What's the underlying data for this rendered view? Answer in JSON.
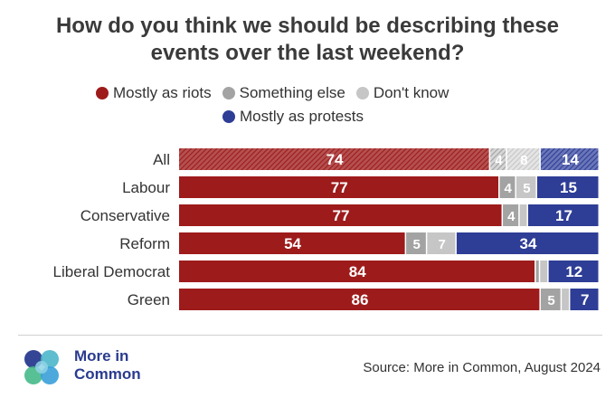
{
  "title_line1": "How do you think we should be describing these",
  "title_line2": "events over the last weekend?",
  "legend": [
    {
      "label": "Mostly as riots",
      "color": "#9e1b1b"
    },
    {
      "label": "Something else",
      "color": "#a3a3a3"
    },
    {
      "label": "Don't know",
      "color": "#c6c6c6"
    },
    {
      "label": "Mostly as protests",
      "color": "#2e3d95"
    }
  ],
  "chart_data": {
    "type": "bar",
    "orientation": "horizontal",
    "stacked": true,
    "categories": [
      "All",
      "Labour",
      "Conservative",
      "Reform",
      "Liberal Democrat",
      "Green"
    ],
    "series": [
      {
        "name": "Mostly as riots",
        "color": "#9e1b1b",
        "values": [
          74,
          77,
          77,
          54,
          84,
          86
        ]
      },
      {
        "name": "Something else",
        "color": "#a3a3a3",
        "values": [
          4,
          4,
          4,
          5,
          1,
          5
        ]
      },
      {
        "name": "Don't know",
        "color": "#c6c6c6",
        "values": [
          8,
          5,
          2,
          7,
          2,
          2
        ]
      },
      {
        "name": "Mostly as protests",
        "color": "#2e3d95",
        "values": [
          14,
          15,
          17,
          34,
          12,
          7
        ]
      }
    ],
    "value_labels": [
      [
        "74",
        "4",
        "8",
        "14"
      ],
      [
        "77",
        "4",
        "5",
        "15"
      ],
      [
        "77",
        "4",
        "",
        "17"
      ],
      [
        "54",
        "5",
        "7",
        "34"
      ],
      [
        "84",
        "",
        "",
        "12"
      ],
      [
        "86",
        "5",
        "",
        "7"
      ]
    ],
    "hatched_categories": [
      "All"
    ],
    "xlim": [
      0,
      100
    ]
  },
  "logo": {
    "line1": "More in",
    "line2": "Common"
  },
  "source": "Source: More in Common, August 2024"
}
